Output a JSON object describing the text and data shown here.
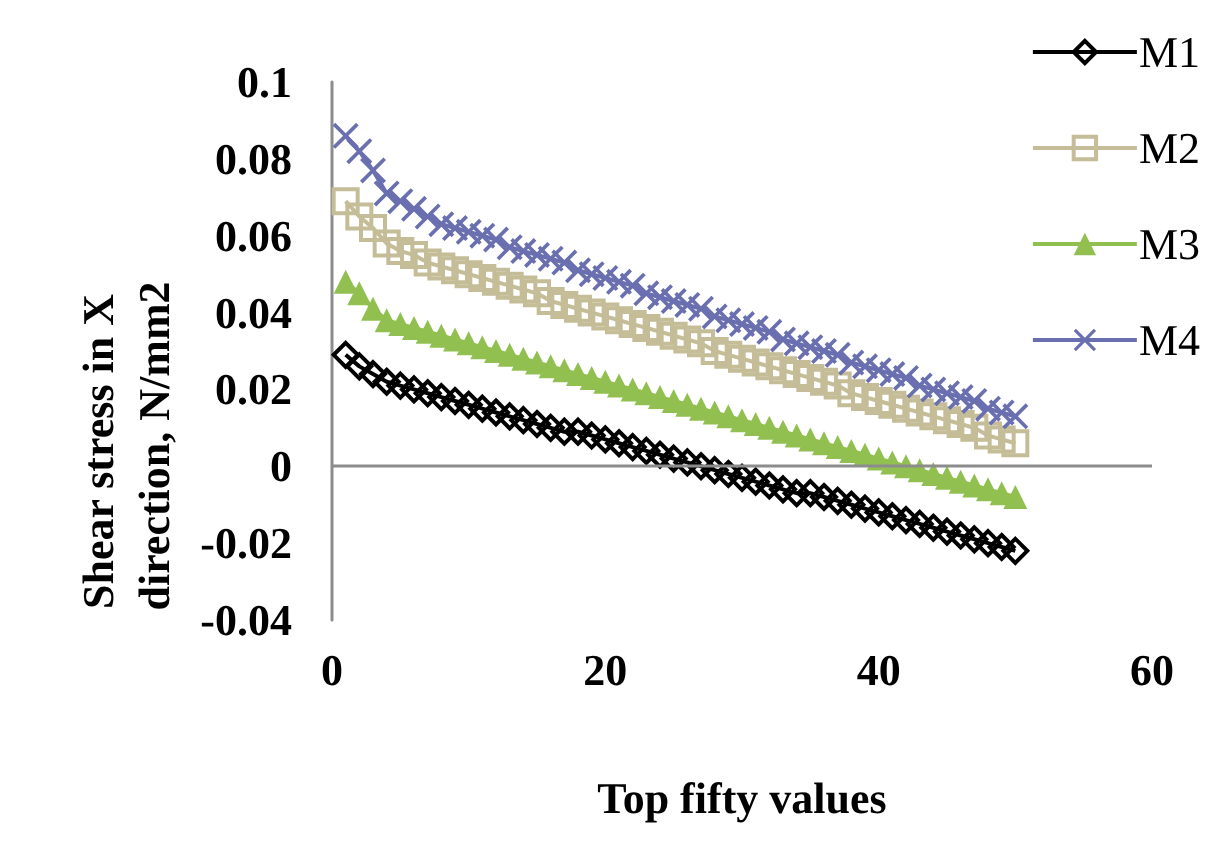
{
  "chart_data": {
    "type": "line",
    "xlabel": "Top fifty values",
    "ylabel": "Shear stress in X direction, N/mm2",
    "x": [
      1,
      2,
      3,
      4,
      5,
      6,
      7,
      8,
      9,
      10,
      11,
      12,
      13,
      14,
      15,
      16,
      17,
      18,
      19,
      20,
      21,
      22,
      23,
      24,
      25,
      26,
      27,
      28,
      29,
      30,
      31,
      32,
      33,
      34,
      35,
      36,
      37,
      38,
      39,
      40,
      41,
      42,
      43,
      44,
      45,
      46,
      47,
      48,
      49,
      50
    ],
    "series": [
      {
        "name": "M1",
        "color": "#000000",
        "marker": "diamond",
        "values": [
          0.029,
          0.026,
          0.024,
          0.022,
          0.021,
          0.02,
          0.019,
          0.018,
          0.017,
          0.016,
          0.015,
          0.014,
          0.013,
          0.012,
          0.011,
          0.01,
          0.009,
          0.009,
          0.008,
          0.007,
          0.006,
          0.005,
          0.004,
          0.003,
          0.002,
          0.001,
          0.0,
          -0.001,
          -0.002,
          -0.003,
          -0.004,
          -0.005,
          -0.006,
          -0.007,
          -0.007,
          -0.008,
          -0.009,
          -0.01,
          -0.011,
          -0.012,
          -0.013,
          -0.014,
          -0.015,
          -0.016,
          -0.017,
          -0.018,
          -0.019,
          -0.02,
          -0.021,
          -0.022
        ]
      },
      {
        "name": "M2",
        "color": "#c4bd97",
        "marker": "square",
        "values": [
          0.069,
          0.065,
          0.062,
          0.058,
          0.056,
          0.055,
          0.053,
          0.052,
          0.051,
          0.05,
          0.049,
          0.048,
          0.047,
          0.046,
          0.045,
          0.043,
          0.042,
          0.041,
          0.04,
          0.039,
          0.038,
          0.037,
          0.036,
          0.035,
          0.034,
          0.033,
          0.032,
          0.03,
          0.029,
          0.028,
          0.027,
          0.026,
          0.025,
          0.024,
          0.023,
          0.022,
          0.021,
          0.019,
          0.018,
          0.017,
          0.016,
          0.015,
          0.014,
          0.013,
          0.012,
          0.011,
          0.01,
          0.008,
          0.007,
          0.006
        ]
      },
      {
        "name": "M3",
        "color": "#92c050",
        "marker": "triangle",
        "values": [
          0.048,
          0.045,
          0.041,
          0.038,
          0.037,
          0.036,
          0.035,
          0.034,
          0.033,
          0.032,
          0.031,
          0.03,
          0.029,
          0.028,
          0.027,
          0.026,
          0.025,
          0.024,
          0.023,
          0.022,
          0.021,
          0.02,
          0.019,
          0.018,
          0.017,
          0.016,
          0.015,
          0.014,
          0.013,
          0.012,
          0.011,
          0.01,
          0.009,
          0.008,
          0.007,
          0.006,
          0.005,
          0.004,
          0.003,
          0.002,
          0.001,
          0.0,
          -0.001,
          -0.002,
          -0.003,
          -0.004,
          -0.005,
          -0.006,
          -0.007,
          -0.008
        ]
      },
      {
        "name": "M4",
        "color": "#6a6fb0",
        "marker": "cross",
        "values": [
          0.086,
          0.082,
          0.077,
          0.071,
          0.069,
          0.067,
          0.065,
          0.063,
          0.062,
          0.061,
          0.06,
          0.059,
          0.057,
          0.056,
          0.055,
          0.054,
          0.053,
          0.051,
          0.05,
          0.049,
          0.048,
          0.047,
          0.045,
          0.044,
          0.043,
          0.042,
          0.041,
          0.039,
          0.038,
          0.037,
          0.036,
          0.035,
          0.033,
          0.032,
          0.031,
          0.03,
          0.029,
          0.027,
          0.026,
          0.025,
          0.024,
          0.023,
          0.021,
          0.02,
          0.019,
          0.018,
          0.017,
          0.015,
          0.014,
          0.013
        ]
      }
    ],
    "xlim": [
      0,
      60
    ],
    "xticks": [
      0,
      20,
      40,
      60
    ],
    "ylim": [
      -0.04,
      0.1
    ],
    "yticks": [
      -0.04,
      -0.02,
      0,
      0.02,
      0.04,
      0.06,
      0.08,
      0.1
    ],
    "ref_lines": [
      {
        "axis": "y",
        "value": 0,
        "color": "#8c8c8c"
      }
    ],
    "grid": false,
    "legend": "top right"
  }
}
